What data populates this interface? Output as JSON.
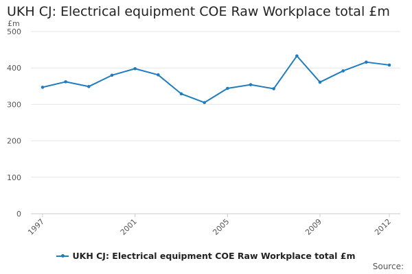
{
  "chart_data": {
    "type": "line",
    "title": "UKH CJ: Electrical equipment COE Raw Workplace total £m",
    "unit_label": "£m",
    "x": [
      1997,
      1998,
      1999,
      2000,
      2001,
      2002,
      2003,
      2004,
      2005,
      2006,
      2007,
      2008,
      2009,
      2010,
      2011,
      2012
    ],
    "x_tick_labels": [
      "1997",
      "2001",
      "2005",
      "2009",
      "2012"
    ],
    "x_tick_values": [
      1997,
      2001,
      2005,
      2009,
      2012
    ],
    "y_ticks": [
      0,
      100,
      200,
      300,
      400,
      500
    ],
    "ylim": [
      0,
      500
    ],
    "grid": true,
    "legend_position": "bottom",
    "series": [
      {
        "name": "UKH CJ: Electrical equipment COE Raw Workplace total £m",
        "color": "#1f7dbf",
        "values": [
          347,
          362,
          349,
          380,
          398,
          381,
          329,
          305,
          344,
          354,
          343,
          433,
          361,
          392,
          416,
          408
        ]
      }
    ]
  },
  "source_label": "Source:"
}
